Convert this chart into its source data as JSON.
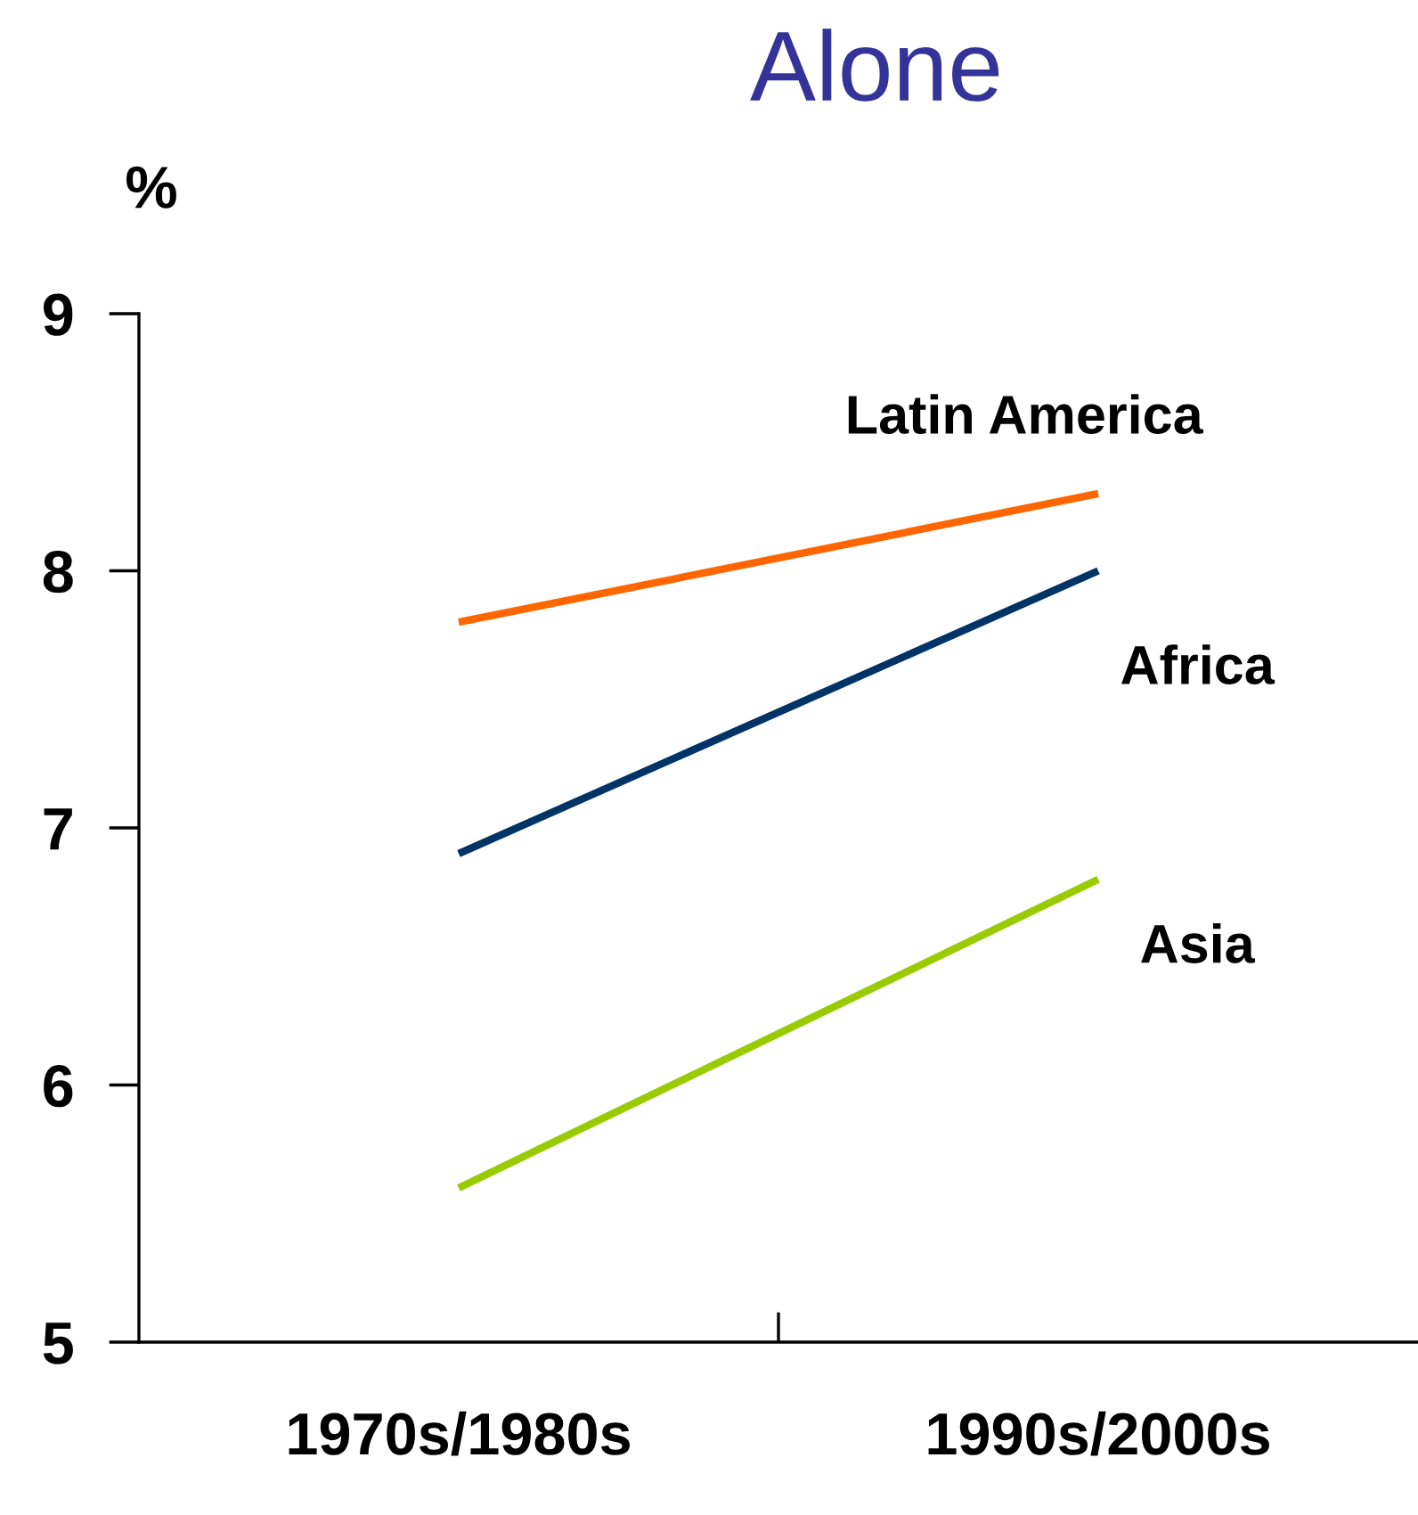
{
  "chart_data": {
    "type": "line",
    "title": "Alone",
    "ylabel": "%",
    "categories": [
      "1970s/1980s",
      "1990s/2000s"
    ],
    "series": [
      {
        "name": "Latin America",
        "color": "#ff6600",
        "values": [
          7.8,
          8.3
        ]
      },
      {
        "name": "Africa",
        "color": "#003366",
        "values": [
          6.9,
          8.0
        ]
      },
      {
        "name": "Asia",
        "color": "#99cc00",
        "values": [
          5.6,
          6.8
        ]
      }
    ],
    "ylim": [
      5,
      9
    ],
    "yticks": [
      5,
      6,
      7,
      8,
      9
    ],
    "grid": false,
    "legend": false,
    "marker": "none",
    "line_style": "solid"
  }
}
